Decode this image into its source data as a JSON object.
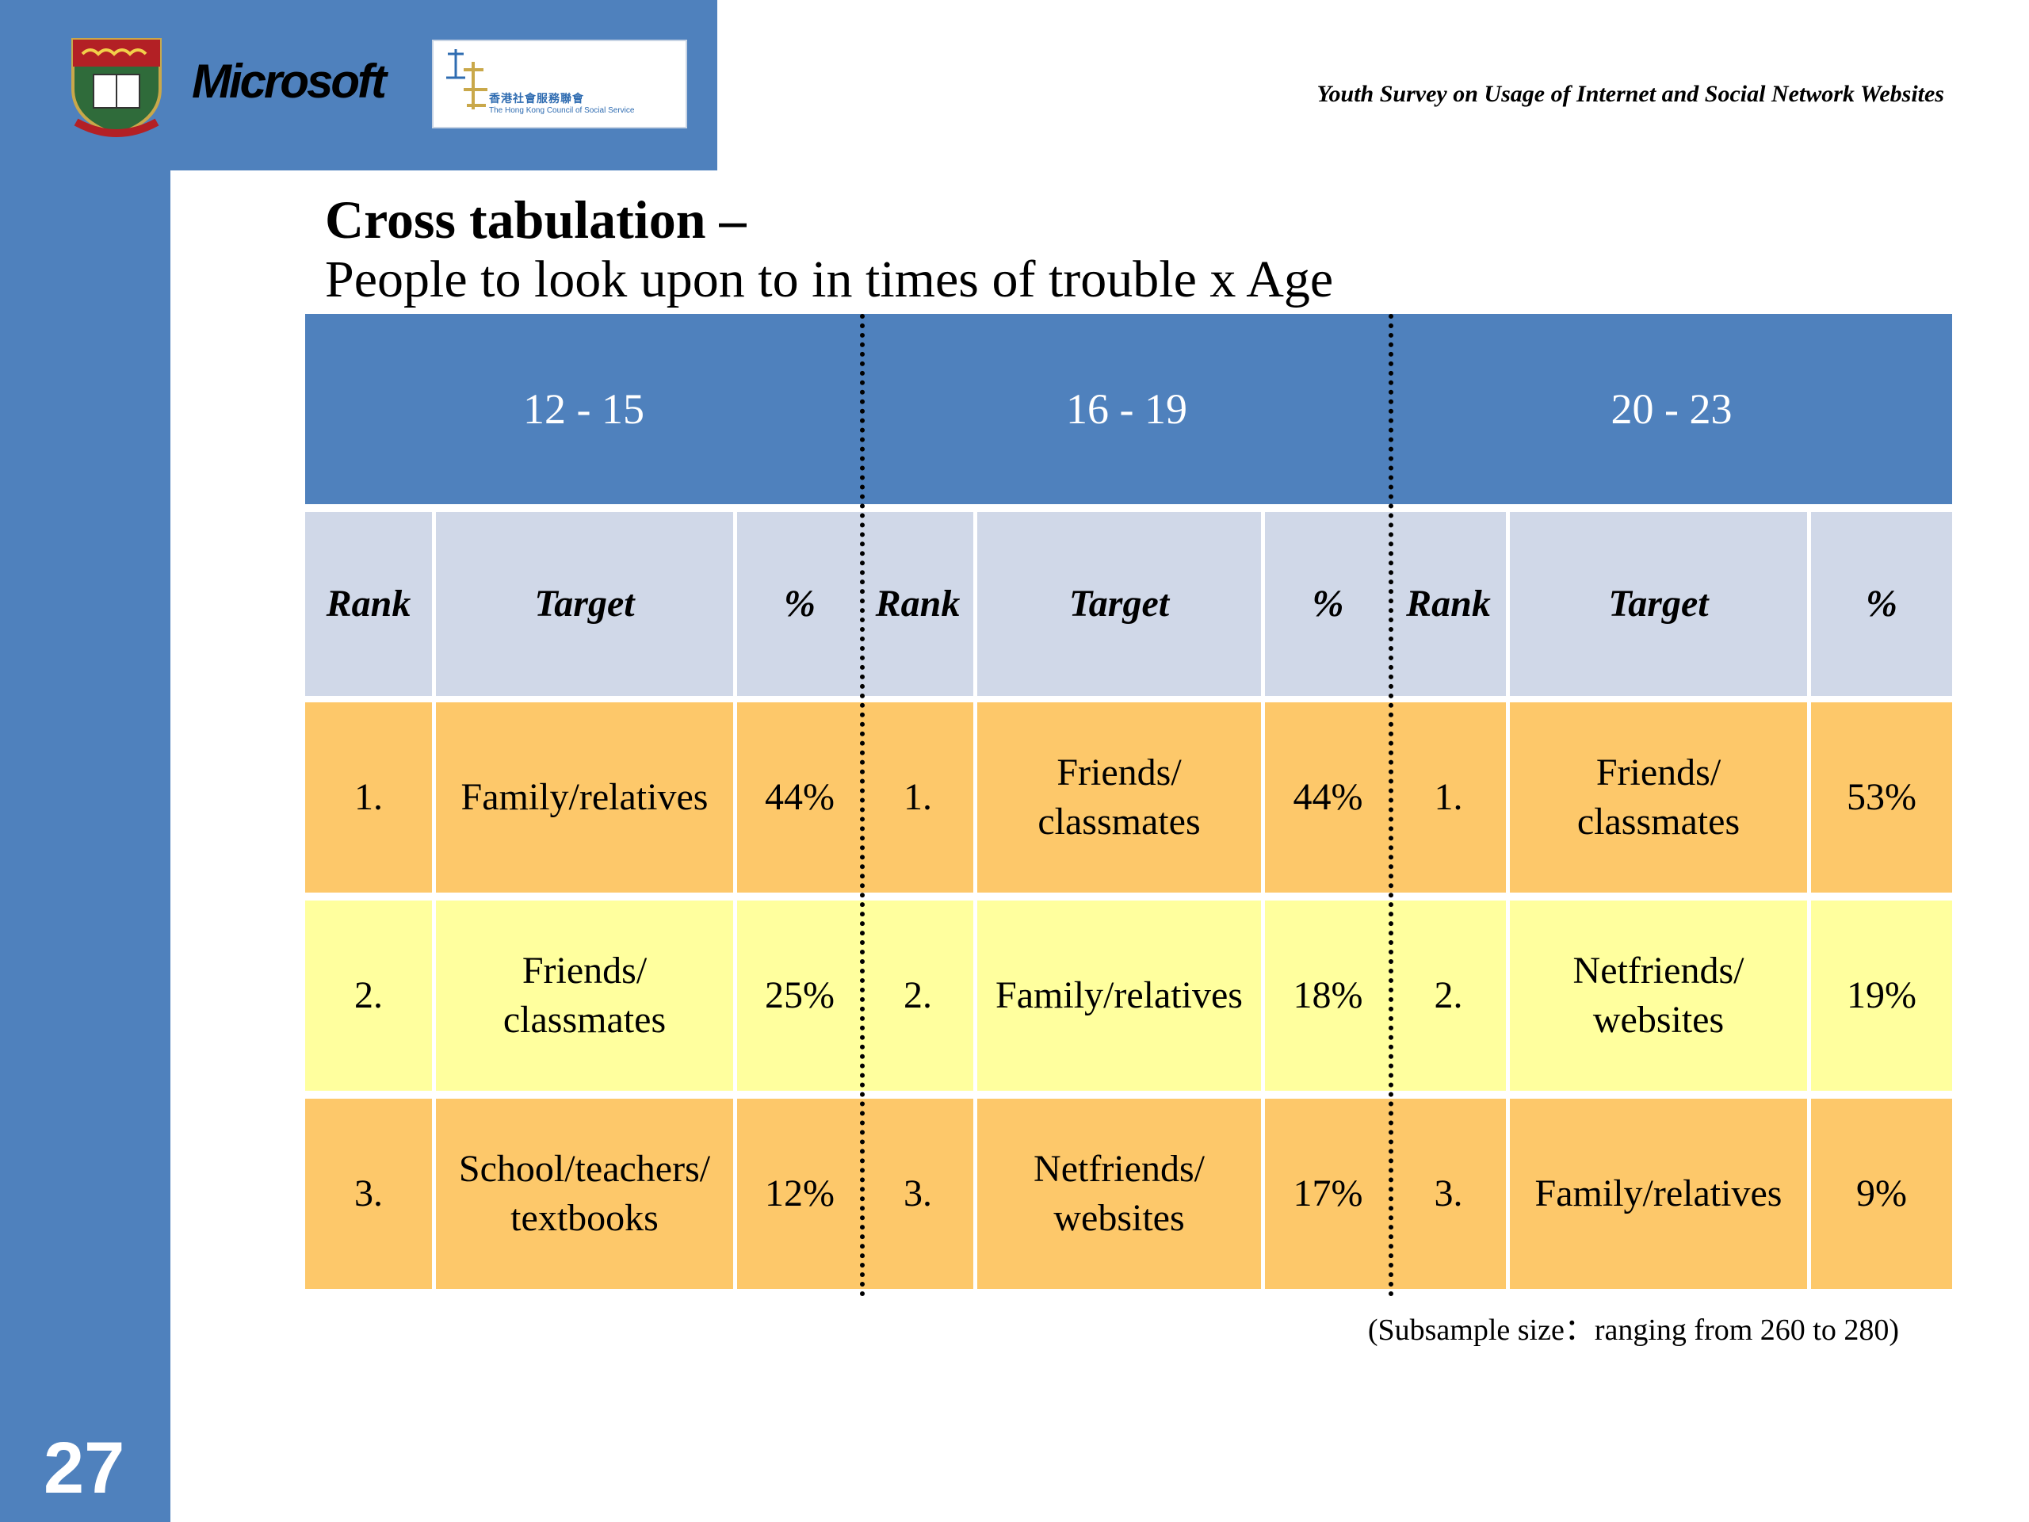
{
  "header": {
    "survey_title": "Youth Survey on Usage of Internet and Social Network Websites",
    "microsoft_logo_text": "Microsoft",
    "hkcss_logo_cn": "香港社會服務聯會",
    "hkcss_logo_en": "The Hong Kong Council of Social Service"
  },
  "slide": {
    "title": "Cross tabulation –",
    "subtitle": "People to look upon to in times of trouble x Age",
    "footnote": "(Subsample size：ranging from 260 to 280)",
    "page_number": "27"
  },
  "table": {
    "age_groups": [
      "12 - 15",
      "16 - 19",
      "20 - 23"
    ],
    "column_headers": {
      "rank": "Rank",
      "target": "Target",
      "percent": "%"
    },
    "groups": [
      {
        "age": "12 - 15",
        "rows": [
          {
            "rank": "1.",
            "target": "Family/relatives",
            "percent": "44%"
          },
          {
            "rank": "2.",
            "target": "Friends/ classmates",
            "percent": "25%"
          },
          {
            "rank": "3.",
            "target": "School/teachers/ textbooks",
            "percent": "12%"
          }
        ]
      },
      {
        "age": "16 - 19",
        "rows": [
          {
            "rank": "1.",
            "target": "Friends/ classmates",
            "percent": "44%"
          },
          {
            "rank": "2.",
            "target": "Family/relatives",
            "percent": "18%"
          },
          {
            "rank": "3.",
            "target": "Netfriends/ websites",
            "percent": "17%"
          }
        ]
      },
      {
        "age": "20 - 23",
        "rows": [
          {
            "rank": "1.",
            "target": "Friends/ classmates",
            "percent": "53%"
          },
          {
            "rank": "2.",
            "target": "Netfriends/ websites",
            "percent": "19%"
          },
          {
            "rank": "3.",
            "target": "Family/relatives",
            "percent": "9%"
          }
        ]
      }
    ]
  },
  "colors": {
    "accent_blue": "#4f81bd",
    "header_gray": "#d0d8e8",
    "row_orange": "#fdc86a",
    "row_yellow": "#ffff9e"
  }
}
